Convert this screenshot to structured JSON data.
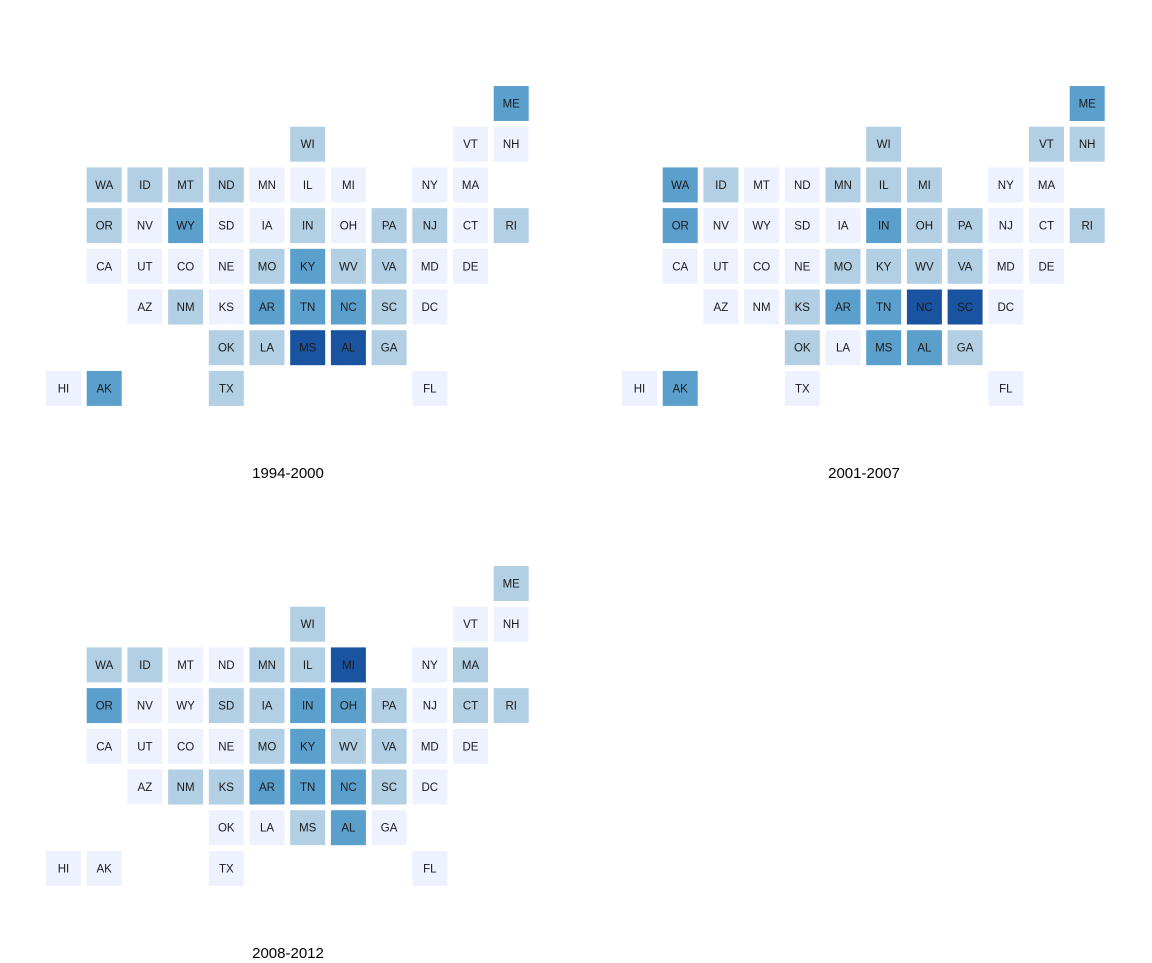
{
  "chart_data": [
    {
      "type": "heatmap",
      "title": "1994-2000",
      "levels": [
        "#eef2ff",
        "#b3cfe4",
        "#5b9fcd",
        "#1a54a1"
      ],
      "cells": [
        {
          "state": "ME",
          "col": 11,
          "row": 0,
          "level": 2
        },
        {
          "state": "WI",
          "col": 6,
          "row": 1,
          "level": 1
        },
        {
          "state": "VT",
          "col": 10,
          "row": 1,
          "level": 0
        },
        {
          "state": "NH",
          "col": 11,
          "row": 1,
          "level": 0
        },
        {
          "state": "WA",
          "col": 1,
          "row": 2,
          "level": 1
        },
        {
          "state": "ID",
          "col": 2,
          "row": 2,
          "level": 1
        },
        {
          "state": "MT",
          "col": 3,
          "row": 2,
          "level": 1
        },
        {
          "state": "ND",
          "col": 4,
          "row": 2,
          "level": 1
        },
        {
          "state": "MN",
          "col": 5,
          "row": 2,
          "level": 0
        },
        {
          "state": "IL",
          "col": 6,
          "row": 2,
          "level": 0
        },
        {
          "state": "MI",
          "col": 7,
          "row": 2,
          "level": 0
        },
        {
          "state": "NY",
          "col": 9,
          "row": 2,
          "level": 0
        },
        {
          "state": "MA",
          "col": 10,
          "row": 2,
          "level": 0
        },
        {
          "state": "OR",
          "col": 1,
          "row": 3,
          "level": 1
        },
        {
          "state": "NV",
          "col": 2,
          "row": 3,
          "level": 0
        },
        {
          "state": "WY",
          "col": 3,
          "row": 3,
          "level": 2
        },
        {
          "state": "SD",
          "col": 4,
          "row": 3,
          "level": 0
        },
        {
          "state": "IA",
          "col": 5,
          "row": 3,
          "level": 0
        },
        {
          "state": "IN",
          "col": 6,
          "row": 3,
          "level": 1
        },
        {
          "state": "OH",
          "col": 7,
          "row": 3,
          "level": 0
        },
        {
          "state": "PA",
          "col": 8,
          "row": 3,
          "level": 1
        },
        {
          "state": "NJ",
          "col": 9,
          "row": 3,
          "level": 1
        },
        {
          "state": "CT",
          "col": 10,
          "row": 3,
          "level": 0
        },
        {
          "state": "RI",
          "col": 11,
          "row": 3,
          "level": 1
        },
        {
          "state": "CA",
          "col": 1,
          "row": 4,
          "level": 0
        },
        {
          "state": "UT",
          "col": 2,
          "row": 4,
          "level": 0
        },
        {
          "state": "CO",
          "col": 3,
          "row": 4,
          "level": 0
        },
        {
          "state": "NE",
          "col": 4,
          "row": 4,
          "level": 0
        },
        {
          "state": "MO",
          "col": 5,
          "row": 4,
          "level": 1
        },
        {
          "state": "KY",
          "col": 6,
          "row": 4,
          "level": 2
        },
        {
          "state": "WV",
          "col": 7,
          "row": 4,
          "level": 1
        },
        {
          "state": "VA",
          "col": 8,
          "row": 4,
          "level": 1
        },
        {
          "state": "MD",
          "col": 9,
          "row": 4,
          "level": 0
        },
        {
          "state": "DE",
          "col": 10,
          "row": 4,
          "level": 0
        },
        {
          "state": "AZ",
          "col": 2,
          "row": 5,
          "level": 0
        },
        {
          "state": "NM",
          "col": 3,
          "row": 5,
          "level": 1
        },
        {
          "state": "KS",
          "col": 4,
          "row": 5,
          "level": 0
        },
        {
          "state": "AR",
          "col": 5,
          "row": 5,
          "level": 2
        },
        {
          "state": "TN",
          "col": 6,
          "row": 5,
          "level": 2
        },
        {
          "state": "NC",
          "col": 7,
          "row": 5,
          "level": 2
        },
        {
          "state": "SC",
          "col": 8,
          "row": 5,
          "level": 1
        },
        {
          "state": "DC",
          "col": 9,
          "row": 5,
          "level": 0
        },
        {
          "state": "OK",
          "col": 4,
          "row": 6,
          "level": 1
        },
        {
          "state": "LA",
          "col": 5,
          "row": 6,
          "level": 1
        },
        {
          "state": "MS",
          "col": 6,
          "row": 6,
          "level": 3
        },
        {
          "state": "AL",
          "col": 7,
          "row": 6,
          "level": 3
        },
        {
          "state": "GA",
          "col": 8,
          "row": 6,
          "level": 1
        },
        {
          "state": "HI",
          "col": 0,
          "row": 7,
          "level": 0
        },
        {
          "state": "AK",
          "col": 1,
          "row": 7,
          "level": 2
        },
        {
          "state": "TX",
          "col": 4,
          "row": 7,
          "level": 1
        },
        {
          "state": "FL",
          "col": 9,
          "row": 7,
          "level": 0
        }
      ]
    },
    {
      "type": "heatmap",
      "title": "2001-2007",
      "levels": [
        "#eef2ff",
        "#b3cfe4",
        "#5b9fcd",
        "#1a54a1"
      ],
      "cells": [
        {
          "state": "ME",
          "col": 11,
          "row": 0,
          "level": 2
        },
        {
          "state": "WI",
          "col": 6,
          "row": 1,
          "level": 1
        },
        {
          "state": "VT",
          "col": 10,
          "row": 1,
          "level": 1
        },
        {
          "state": "NH",
          "col": 11,
          "row": 1,
          "level": 1
        },
        {
          "state": "WA",
          "col": 1,
          "row": 2,
          "level": 2
        },
        {
          "state": "ID",
          "col": 2,
          "row": 2,
          "level": 1
        },
        {
          "state": "MT",
          "col": 3,
          "row": 2,
          "level": 0
        },
        {
          "state": "ND",
          "col": 4,
          "row": 2,
          "level": 0
        },
        {
          "state": "MN",
          "col": 5,
          "row": 2,
          "level": 1
        },
        {
          "state": "IL",
          "col": 6,
          "row": 2,
          "level": 1
        },
        {
          "state": "MI",
          "col": 7,
          "row": 2,
          "level": 1
        },
        {
          "state": "NY",
          "col": 9,
          "row": 2,
          "level": 0
        },
        {
          "state": "MA",
          "col": 10,
          "row": 2,
          "level": 0
        },
        {
          "state": "OR",
          "col": 1,
          "row": 3,
          "level": 2
        },
        {
          "state": "NV",
          "col": 2,
          "row": 3,
          "level": 0
        },
        {
          "state": "WY",
          "col": 3,
          "row": 3,
          "level": 0
        },
        {
          "state": "SD",
          "col": 4,
          "row": 3,
          "level": 0
        },
        {
          "state": "IA",
          "col": 5,
          "row": 3,
          "level": 0
        },
        {
          "state": "IN",
          "col": 6,
          "row": 3,
          "level": 2
        },
        {
          "state": "OH",
          "col": 7,
          "row": 3,
          "level": 1
        },
        {
          "state": "PA",
          "col": 8,
          "row": 3,
          "level": 1
        },
        {
          "state": "NJ",
          "col": 9,
          "row": 3,
          "level": 0
        },
        {
          "state": "CT",
          "col": 10,
          "row": 3,
          "level": 0
        },
        {
          "state": "RI",
          "col": 11,
          "row": 3,
          "level": 1
        },
        {
          "state": "CA",
          "col": 1,
          "row": 4,
          "level": 0
        },
        {
          "state": "UT",
          "col": 2,
          "row": 4,
          "level": 0
        },
        {
          "state": "CO",
          "col": 3,
          "row": 4,
          "level": 0
        },
        {
          "state": "NE",
          "col": 4,
          "row": 4,
          "level": 0
        },
        {
          "state": "MO",
          "col": 5,
          "row": 4,
          "level": 1
        },
        {
          "state": "KY",
          "col": 6,
          "row": 4,
          "level": 1
        },
        {
          "state": "WV",
          "col": 7,
          "row": 4,
          "level": 1
        },
        {
          "state": "VA",
          "col": 8,
          "row": 4,
          "level": 1
        },
        {
          "state": "MD",
          "col": 9,
          "row": 4,
          "level": 0
        },
        {
          "state": "DE",
          "col": 10,
          "row": 4,
          "level": 0
        },
        {
          "state": "AZ",
          "col": 2,
          "row": 5,
          "level": 0
        },
        {
          "state": "NM",
          "col": 3,
          "row": 5,
          "level": 0
        },
        {
          "state": "KS",
          "col": 4,
          "row": 5,
          "level": 1
        },
        {
          "state": "AR",
          "col": 5,
          "row": 5,
          "level": 2
        },
        {
          "state": "TN",
          "col": 6,
          "row": 5,
          "level": 2
        },
        {
          "state": "NC",
          "col": 7,
          "row": 5,
          "level": 3
        },
        {
          "state": "SC",
          "col": 8,
          "row": 5,
          "level": 3
        },
        {
          "state": "DC",
          "col": 9,
          "row": 5,
          "level": 0
        },
        {
          "state": "OK",
          "col": 4,
          "row": 6,
          "level": 1
        },
        {
          "state": "LA",
          "col": 5,
          "row": 6,
          "level": 0
        },
        {
          "state": "MS",
          "col": 6,
          "row": 6,
          "level": 2
        },
        {
          "state": "AL",
          "col": 7,
          "row": 6,
          "level": 2
        },
        {
          "state": "GA",
          "col": 8,
          "row": 6,
          "level": 1
        },
        {
          "state": "HI",
          "col": 0,
          "row": 7,
          "level": 0
        },
        {
          "state": "AK",
          "col": 1,
          "row": 7,
          "level": 2
        },
        {
          "state": "TX",
          "col": 4,
          "row": 7,
          "level": 0
        },
        {
          "state": "FL",
          "col": 9,
          "row": 7,
          "level": 0
        }
      ]
    },
    {
      "type": "heatmap",
      "title": "2008-2012",
      "levels": [
        "#eef2ff",
        "#b3cfe4",
        "#5b9fcd",
        "#1a54a1"
      ],
      "cells": [
        {
          "state": "ME",
          "col": 11,
          "row": 0,
          "level": 1
        },
        {
          "state": "WI",
          "col": 6,
          "row": 1,
          "level": 1
        },
        {
          "state": "VT",
          "col": 10,
          "row": 1,
          "level": 0
        },
        {
          "state": "NH",
          "col": 11,
          "row": 1,
          "level": 0
        },
        {
          "state": "WA",
          "col": 1,
          "row": 2,
          "level": 1
        },
        {
          "state": "ID",
          "col": 2,
          "row": 2,
          "level": 1
        },
        {
          "state": "MT",
          "col": 3,
          "row": 2,
          "level": 0
        },
        {
          "state": "ND",
          "col": 4,
          "row": 2,
          "level": 0
        },
        {
          "state": "MN",
          "col": 5,
          "row": 2,
          "level": 1
        },
        {
          "state": "IL",
          "col": 6,
          "row": 2,
          "level": 1
        },
        {
          "state": "MI",
          "col": 7,
          "row": 2,
          "level": 3
        },
        {
          "state": "NY",
          "col": 9,
          "row": 2,
          "level": 0
        },
        {
          "state": "MA",
          "col": 10,
          "row": 2,
          "level": 1
        },
        {
          "state": "OR",
          "col": 1,
          "row": 3,
          "level": 2
        },
        {
          "state": "NV",
          "col": 2,
          "row": 3,
          "level": 0
        },
        {
          "state": "WY",
          "col": 3,
          "row": 3,
          "level": 0
        },
        {
          "state": "SD",
          "col": 4,
          "row": 3,
          "level": 1
        },
        {
          "state": "IA",
          "col": 5,
          "row": 3,
          "level": 1
        },
        {
          "state": "IN",
          "col": 6,
          "row": 3,
          "level": 2
        },
        {
          "state": "OH",
          "col": 7,
          "row": 3,
          "level": 2
        },
        {
          "state": "PA",
          "col": 8,
          "row": 3,
          "level": 1
        },
        {
          "state": "NJ",
          "col": 9,
          "row": 3,
          "level": 0
        },
        {
          "state": "CT",
          "col": 10,
          "row": 3,
          "level": 1
        },
        {
          "state": "RI",
          "col": 11,
          "row": 3,
          "level": 1
        },
        {
          "state": "CA",
          "col": 1,
          "row": 4,
          "level": 0
        },
        {
          "state": "UT",
          "col": 2,
          "row": 4,
          "level": 0
        },
        {
          "state": "CO",
          "col": 3,
          "row": 4,
          "level": 0
        },
        {
          "state": "NE",
          "col": 4,
          "row": 4,
          "level": 0
        },
        {
          "state": "MO",
          "col": 5,
          "row": 4,
          "level": 1
        },
        {
          "state": "KY",
          "col": 6,
          "row": 4,
          "level": 2
        },
        {
          "state": "WV",
          "col": 7,
          "row": 4,
          "level": 1
        },
        {
          "state": "VA",
          "col": 8,
          "row": 4,
          "level": 1
        },
        {
          "state": "MD",
          "col": 9,
          "row": 4,
          "level": 0
        },
        {
          "state": "DE",
          "col": 10,
          "row": 4,
          "level": 0
        },
        {
          "state": "AZ",
          "col": 2,
          "row": 5,
          "level": 0
        },
        {
          "state": "NM",
          "col": 3,
          "row": 5,
          "level": 1
        },
        {
          "state": "KS",
          "col": 4,
          "row": 5,
          "level": 1
        },
        {
          "state": "AR",
          "col": 5,
          "row": 5,
          "level": 2
        },
        {
          "state": "TN",
          "col": 6,
          "row": 5,
          "level": 2
        },
        {
          "state": "NC",
          "col": 7,
          "row": 5,
          "level": 2
        },
        {
          "state": "SC",
          "col": 8,
          "row": 5,
          "level": 1
        },
        {
          "state": "DC",
          "col": 9,
          "row": 5,
          "level": 0
        },
        {
          "state": "OK",
          "col": 4,
          "row": 6,
          "level": 0
        },
        {
          "state": "LA",
          "col": 5,
          "row": 6,
          "level": 0
        },
        {
          "state": "MS",
          "col": 6,
          "row": 6,
          "level": 1
        },
        {
          "state": "AL",
          "col": 7,
          "row": 6,
          "level": 2
        },
        {
          "state": "GA",
          "col": 8,
          "row": 6,
          "level": 0
        },
        {
          "state": "HI",
          "col": 0,
          "row": 7,
          "level": 0
        },
        {
          "state": "AK",
          "col": 1,
          "row": 7,
          "level": 0
        },
        {
          "state": "TX",
          "col": 4,
          "row": 7,
          "level": 0
        },
        {
          "state": "FL",
          "col": 9,
          "row": 7,
          "level": 0
        }
      ]
    }
  ]
}
